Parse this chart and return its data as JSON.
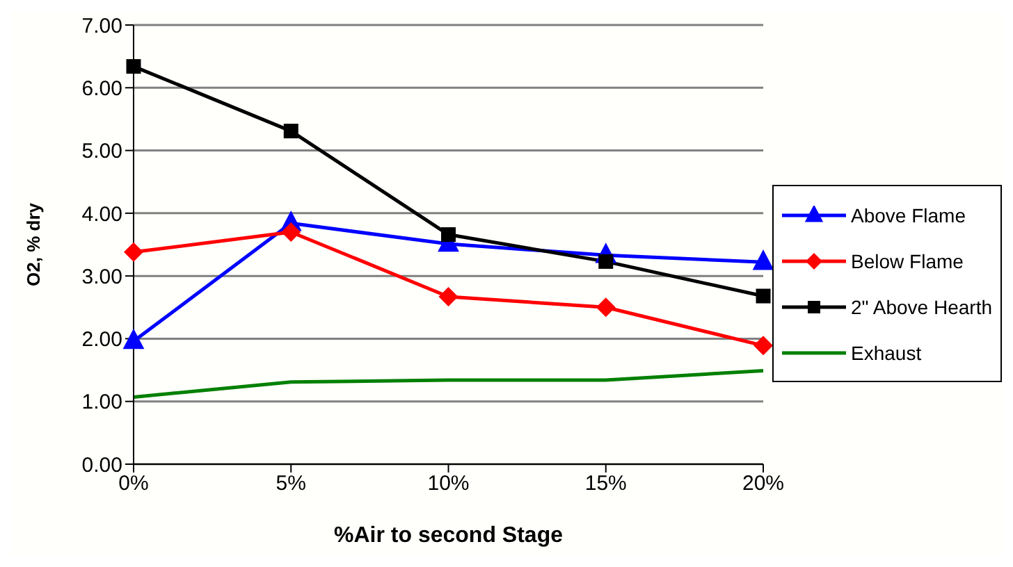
{
  "chart_data": {
    "type": "line",
    "xlabel": "%Air to second Stage",
    "ylabel": "O2, % dry",
    "categories": [
      "0%",
      "5%",
      "10%",
      "15%",
      "20%"
    ],
    "series": [
      {
        "name": "Above Flame",
        "color": "#0000ff",
        "marker": "triangle",
        "values": [
          1.96,
          3.84,
          3.51,
          3.33,
          3.22
        ]
      },
      {
        "name": "Below Flame",
        "color": "#ff0000",
        "marker": "diamond",
        "values": [
          3.38,
          3.7,
          2.67,
          2.5,
          1.89
        ]
      },
      {
        "name": "2\" Above Hearth",
        "color": "#000000",
        "marker": "square",
        "values": [
          6.34,
          5.31,
          3.66,
          3.23,
          2.68
        ]
      },
      {
        "name": "Exhaust",
        "color": "#008000",
        "marker": "none",
        "values": [
          1.07,
          1.31,
          1.34,
          1.34,
          1.49
        ]
      }
    ],
    "ylim": [
      0,
      7
    ],
    "yticks": [
      {
        "value": 0,
        "label": "0.00"
      },
      {
        "value": 1,
        "label": "1.00"
      },
      {
        "value": 2,
        "label": "2.00"
      },
      {
        "value": 3,
        "label": "3.00"
      },
      {
        "value": 4,
        "label": "4.00"
      },
      {
        "value": 5,
        "label": "5.00"
      },
      {
        "value": 6,
        "label": "6.00"
      },
      {
        "value": 7,
        "label": "7.00"
      }
    ],
    "grid": "y",
    "legend": "right"
  }
}
